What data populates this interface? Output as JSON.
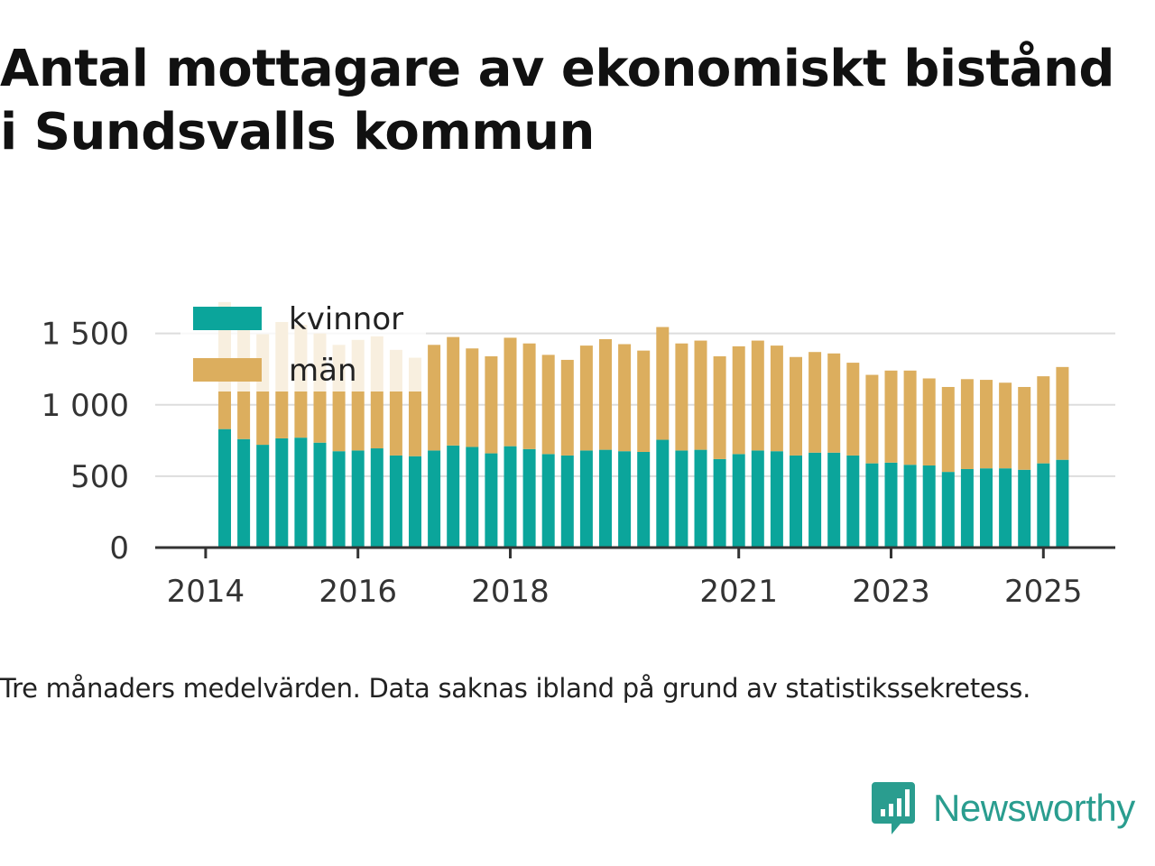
{
  "header": {
    "title_line1": "Antal mottagare av ekonomiskt bistånd",
    "title_line2": "i Sundsvalls kommun"
  },
  "footer": {
    "note": "Tre månaders medelvärden. Data saknas ibland på grund av statistikssekretess.",
    "brand": "Newsworthy"
  },
  "colors": {
    "kvinnor": "#0ba59b",
    "man": "#dcae5e",
    "grid": "#dddddd",
    "axis": "#333333",
    "brand": "#2a9d8f"
  },
  "chart_data": {
    "type": "bar",
    "stacked": true,
    "title": "",
    "xlabel": "",
    "ylabel": "",
    "ylim": [
      0,
      1700
    ],
    "yticks": [
      0,
      500,
      1000,
      1500
    ],
    "ytick_labels": [
      "0",
      "500",
      "1 000",
      "1 500"
    ],
    "xticks": [
      {
        "label": "2014",
        "bar_index": -1
      },
      {
        "label": "2016",
        "bar_index": 7
      },
      {
        "label": "2018",
        "bar_index": 15
      },
      {
        "label": "2021",
        "bar_index": 27
      },
      {
        "label": "2023",
        "bar_index": 35
      },
      {
        "label": "2025",
        "bar_index": 43
      }
    ],
    "legend": {
      "position": "top-left",
      "entries": [
        "kvinnor",
        "män"
      ]
    },
    "grid": true,
    "series": [
      {
        "name": "kvinnor",
        "values": [
          830,
          760,
          720,
          765,
          770,
          735,
          675,
          680,
          695,
          645,
          640,
          680,
          715,
          705,
          660,
          710,
          690,
          655,
          645,
          680,
          685,
          675,
          670,
          755,
          680,
          685,
          620,
          655,
          680,
          675,
          645,
          665,
          665,
          645,
          590,
          595,
          580,
          575,
          530,
          550,
          555,
          555,
          545,
          590,
          615
        ]
      },
      {
        "name": "män",
        "values": [
          890,
          850,
          775,
          815,
          790,
          765,
          745,
          775,
          785,
          740,
          690,
          740,
          760,
          690,
          680,
          760,
          740,
          695,
          670,
          735,
          775,
          750,
          710,
          790,
          750,
          765,
          720,
          755,
          770,
          740,
          690,
          705,
          695,
          650,
          620,
          645,
          660,
          610,
          595,
          630,
          620,
          600,
          580,
          610,
          650
        ]
      }
    ]
  }
}
